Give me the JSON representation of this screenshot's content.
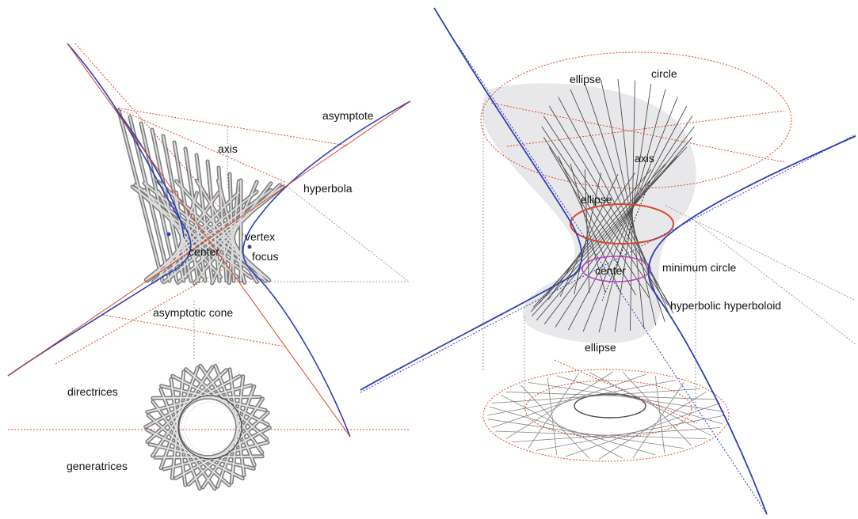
{
  "left_panel": {
    "labels": {
      "asymptote": "asymptote",
      "axis": "axis",
      "hyperbola": "hyperbola",
      "vertex": "vertex",
      "center": "center",
      "focus": "focus",
      "asymptotic_cone": "asymptotic cone",
      "directrices": "directrices",
      "generatrices": "generatrices"
    }
  },
  "right_panel": {
    "labels": {
      "ellipse_top": "ellipse",
      "circle": "circle",
      "axis": "axis",
      "ellipse_mid": "ellipse",
      "center": "center",
      "minimum_circle": "minimum circle",
      "hyperbolic_hyperboloid": "hyperbolic hyperboloid",
      "ellipse_bottom": "ellipse"
    }
  },
  "colors": {
    "asymptote_blue": "#2f3fb5",
    "construction_red": "#d9472b",
    "rod_gray": "#555555",
    "surface_fill": "#e8e8ea",
    "minimum_circle": "#c040c0"
  }
}
